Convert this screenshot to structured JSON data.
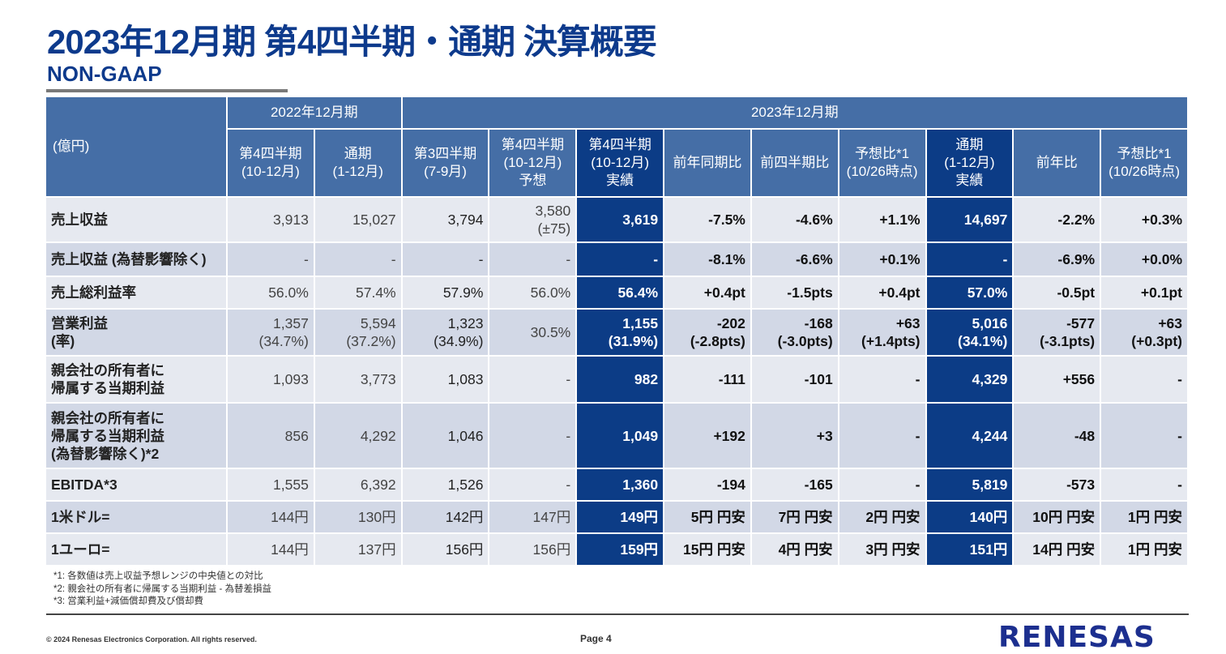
{
  "title": "2023年12月期 第4四半期・通期 決算概要",
  "subtitle": "NON-GAAP",
  "unit": "(億円)",
  "groups": [
    "2022年12月期",
    "2023年12月期"
  ],
  "columns": [
    [
      "第4四半期",
      "(10-12月)"
    ],
    [
      "通期",
      "(1-12月)"
    ],
    [
      "第3四半期",
      "(7-9月)"
    ],
    [
      "第4四半期",
      "(10-12月)",
      "予想"
    ],
    [
      "第4四半期",
      "(10-12月)",
      "実績"
    ],
    [
      "前年同期比"
    ],
    [
      "前四半期比"
    ],
    [
      "予想比*1",
      "(10/26時点)"
    ],
    [
      "通期",
      "(1-12月)",
      "実績"
    ],
    [
      "前年比"
    ],
    [
      "予想比*1",
      "(10/26時点)"
    ]
  ],
  "rows": [
    {
      "label": [
        "売上収益"
      ],
      "values": [
        [
          "3,913"
        ],
        [
          "15,027"
        ],
        [
          "3,794"
        ],
        [
          "3,580",
          "(±75)"
        ],
        [
          "3,619"
        ],
        [
          "-7.5%"
        ],
        [
          "-4.6%"
        ],
        [
          "+1.1%"
        ],
        [
          "14,697"
        ],
        [
          "-2.2%"
        ],
        [
          "+0.3%"
        ]
      ]
    },
    {
      "label": [
        "売上収益 (為替影響除く)"
      ],
      "values": [
        [
          "-"
        ],
        [
          "-"
        ],
        [
          "-"
        ],
        [
          "-"
        ],
        [
          "-"
        ],
        [
          "-8.1%"
        ],
        [
          "-6.6%"
        ],
        [
          "+0.1%"
        ],
        [
          "-"
        ],
        [
          "-6.9%"
        ],
        [
          "+0.0%"
        ]
      ]
    },
    {
      "label": [
        "売上総利益率"
      ],
      "values": [
        [
          "56.0%"
        ],
        [
          "57.4%"
        ],
        [
          "57.9%"
        ],
        [
          "56.0%"
        ],
        [
          "56.4%"
        ],
        [
          "+0.4pt"
        ],
        [
          "-1.5pts"
        ],
        [
          "+0.4pt"
        ],
        [
          "57.0%"
        ],
        [
          "-0.5pt"
        ],
        [
          "+0.1pt"
        ]
      ]
    },
    {
      "label": [
        "営業利益",
        "(率)"
      ],
      "values": [
        [
          "1,357",
          "(34.7%)"
        ],
        [
          "5,594",
          "(37.2%)"
        ],
        [
          "1,323",
          "(34.9%)"
        ],
        [
          "30.5%"
        ],
        [
          "1,155",
          "(31.9%)"
        ],
        [
          "-202",
          "(-2.8pts)"
        ],
        [
          "-168",
          "(-3.0pts)"
        ],
        [
          "+63",
          "(+1.4pts)"
        ],
        [
          "5,016",
          "(34.1%)"
        ],
        [
          "-577",
          "(-3.1pts)"
        ],
        [
          "+63",
          "(+0.3pt)"
        ]
      ]
    },
    {
      "label": [
        "親会社の所有者に",
        "帰属する当期利益"
      ],
      "values": [
        [
          "1,093"
        ],
        [
          "3,773"
        ],
        [
          "1,083"
        ],
        [
          "-"
        ],
        [
          "982"
        ],
        [
          "-111"
        ],
        [
          "-101"
        ],
        [
          "-"
        ],
        [
          "4,329"
        ],
        [
          "+556"
        ],
        [
          "-"
        ]
      ]
    },
    {
      "label": [
        "親会社の所有者に",
        "帰属する当期利益",
        "(為替影響除く)*2"
      ],
      "values": [
        [
          "856"
        ],
        [
          "4,292"
        ],
        [
          "1,046"
        ],
        [
          "-"
        ],
        [
          "1,049"
        ],
        [
          "+192"
        ],
        [
          "+3"
        ],
        [
          "-"
        ],
        [
          "4,244"
        ],
        [
          "-48"
        ],
        [
          "-"
        ]
      ]
    },
    {
      "label": [
        "EBITDA*3"
      ],
      "values": [
        [
          "1,555"
        ],
        [
          "6,392"
        ],
        [
          "1,526"
        ],
        [
          "-"
        ],
        [
          "1,360"
        ],
        [
          "-194"
        ],
        [
          "-165"
        ],
        [
          "-"
        ],
        [
          "5,819"
        ],
        [
          "-573"
        ],
        [
          "-"
        ]
      ]
    },
    {
      "label": [
        "1米ドル="
      ],
      "values": [
        [
          "144円"
        ],
        [
          "130円"
        ],
        [
          "142円"
        ],
        [
          "147円"
        ],
        [
          "149円"
        ],
        [
          "5円 円安"
        ],
        [
          "7円 円安"
        ],
        [
          "2円 円安"
        ],
        [
          "140円"
        ],
        [
          "10円 円安"
        ],
        [
          "1円 円安"
        ]
      ]
    },
    {
      "label": [
        "1ユーロ="
      ],
      "values": [
        [
          "144円"
        ],
        [
          "137円"
        ],
        [
          "156円"
        ],
        [
          "156円"
        ],
        [
          "159円"
        ],
        [
          "15円 円安"
        ],
        [
          "4円 円安"
        ],
        [
          "3円 円安"
        ],
        [
          "151円"
        ],
        [
          "14円 円安"
        ],
        [
          "1円 円安"
        ]
      ]
    }
  ],
  "notes": [
    "*1: 各数値は売上収益予想レンジの中央値との対比",
    "*2: 親会社の所有者に帰属する当期利益 - 為替差損益",
    "*3: 営業利益+減価償却費及び償却費"
  ],
  "footer": {
    "copyright": "© 2024 Renesas Electronics Corporation. All rights reserved.",
    "page": "Page 4",
    "logo": "RENESAS"
  }
}
